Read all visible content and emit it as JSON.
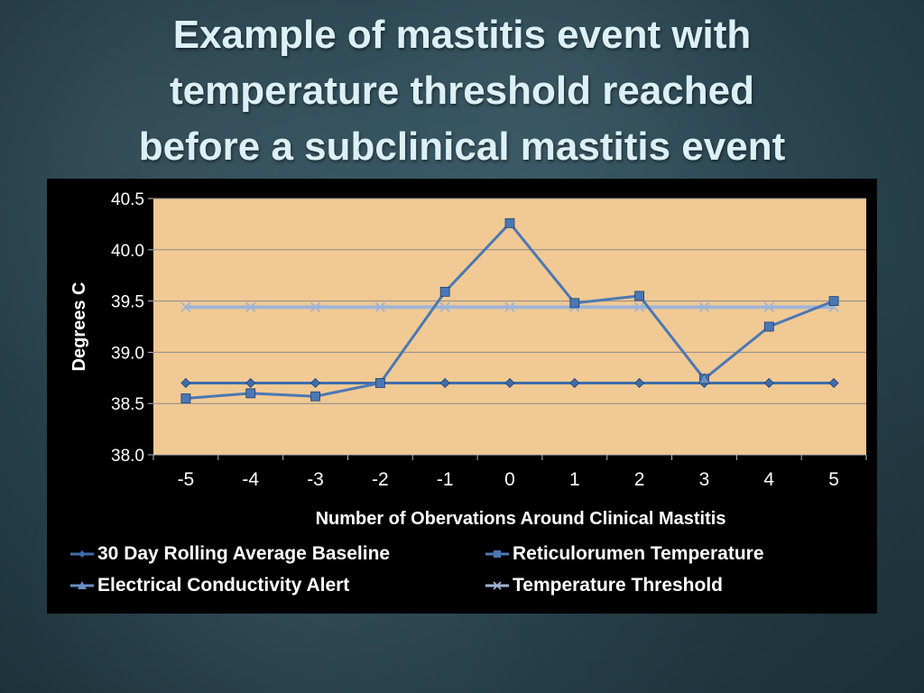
{
  "slide": {
    "title_lines": [
      "Example of mastitis event with",
      "temperature threshold reached",
      "before a subclinical mastitis event"
    ]
  },
  "colors": {
    "plot_background": "#f1c994",
    "chart_background": "#000000",
    "baseline": "#3e6dac",
    "reticulorumen": "#4a78b4",
    "conductivity": "#6a8fc4",
    "threshold": "#9fb4d6"
  },
  "chart_data": {
    "type": "line",
    "title": "",
    "xlabel": "Number of Obervations Around Clinical Mastitis",
    "ylabel": "Degrees C",
    "ylim": [
      38.0,
      40.5
    ],
    "yticks": [
      "38.0",
      "38.5",
      "39.0",
      "39.5",
      "40.0",
      "40.5"
    ],
    "categories": [
      "-5",
      "-4",
      "-3",
      "-2",
      "-1",
      "0",
      "1",
      "2",
      "3",
      "4",
      "5"
    ],
    "grid": true,
    "legend_position": "bottom",
    "series": [
      {
        "name": "30 Day Rolling Average Baseline",
        "marker": "diamond",
        "color": "#3e6dac",
        "values": [
          38.7,
          38.7,
          38.7,
          38.7,
          38.7,
          38.7,
          38.7,
          38.7,
          38.7,
          38.7,
          38.7
        ]
      },
      {
        "name": "Reticulorumen Temperature",
        "marker": "square",
        "color": "#4a78b4",
        "values": [
          38.55,
          38.6,
          38.57,
          38.7,
          39.59,
          40.26,
          39.48,
          39.55,
          38.74,
          39.25,
          39.5
        ]
      },
      {
        "name": "Electrical Conductivity Alert",
        "marker": "triangle",
        "color": "#6a8fc4",
        "values": [
          null,
          null,
          null,
          null,
          null,
          null,
          null,
          null,
          38.74,
          null,
          null
        ]
      },
      {
        "name": "Temperature Threshold",
        "marker": "x",
        "color": "#9fb4d6",
        "values": [
          39.44,
          39.44,
          39.44,
          39.44,
          39.44,
          39.44,
          39.44,
          39.44,
          39.44,
          39.44,
          39.44
        ]
      }
    ]
  }
}
